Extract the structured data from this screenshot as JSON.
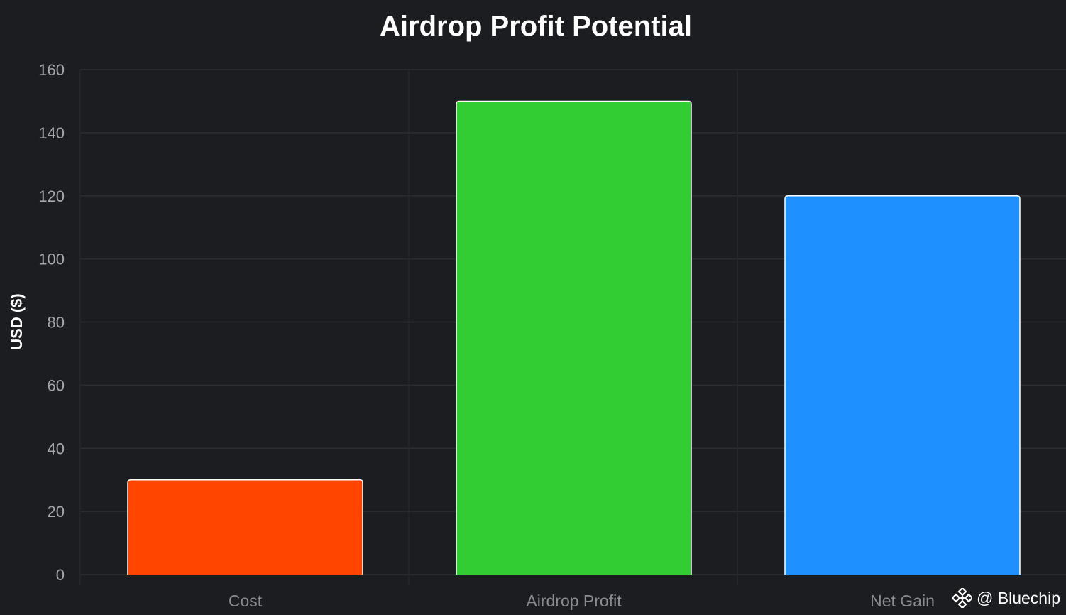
{
  "chart_data": {
    "type": "bar",
    "title": "Airdrop Profit Potential",
    "xlabel": "",
    "ylabel": "USD ($)",
    "categories": [
      "Cost",
      "Airdrop Profit",
      "Net Gain"
    ],
    "values": [
      30,
      150,
      120
    ],
    "bar_colors": [
      "#ff4500",
      "#32cd32",
      "#1e90ff"
    ],
    "ylim": [
      0,
      160
    ],
    "yticks": [
      0,
      20,
      40,
      60,
      80,
      100,
      120,
      140,
      160
    ],
    "grid": true,
    "background": "#1c1d21"
  },
  "watermark": {
    "icon": "binance-logo-icon",
    "text": "@ Bluechip"
  }
}
